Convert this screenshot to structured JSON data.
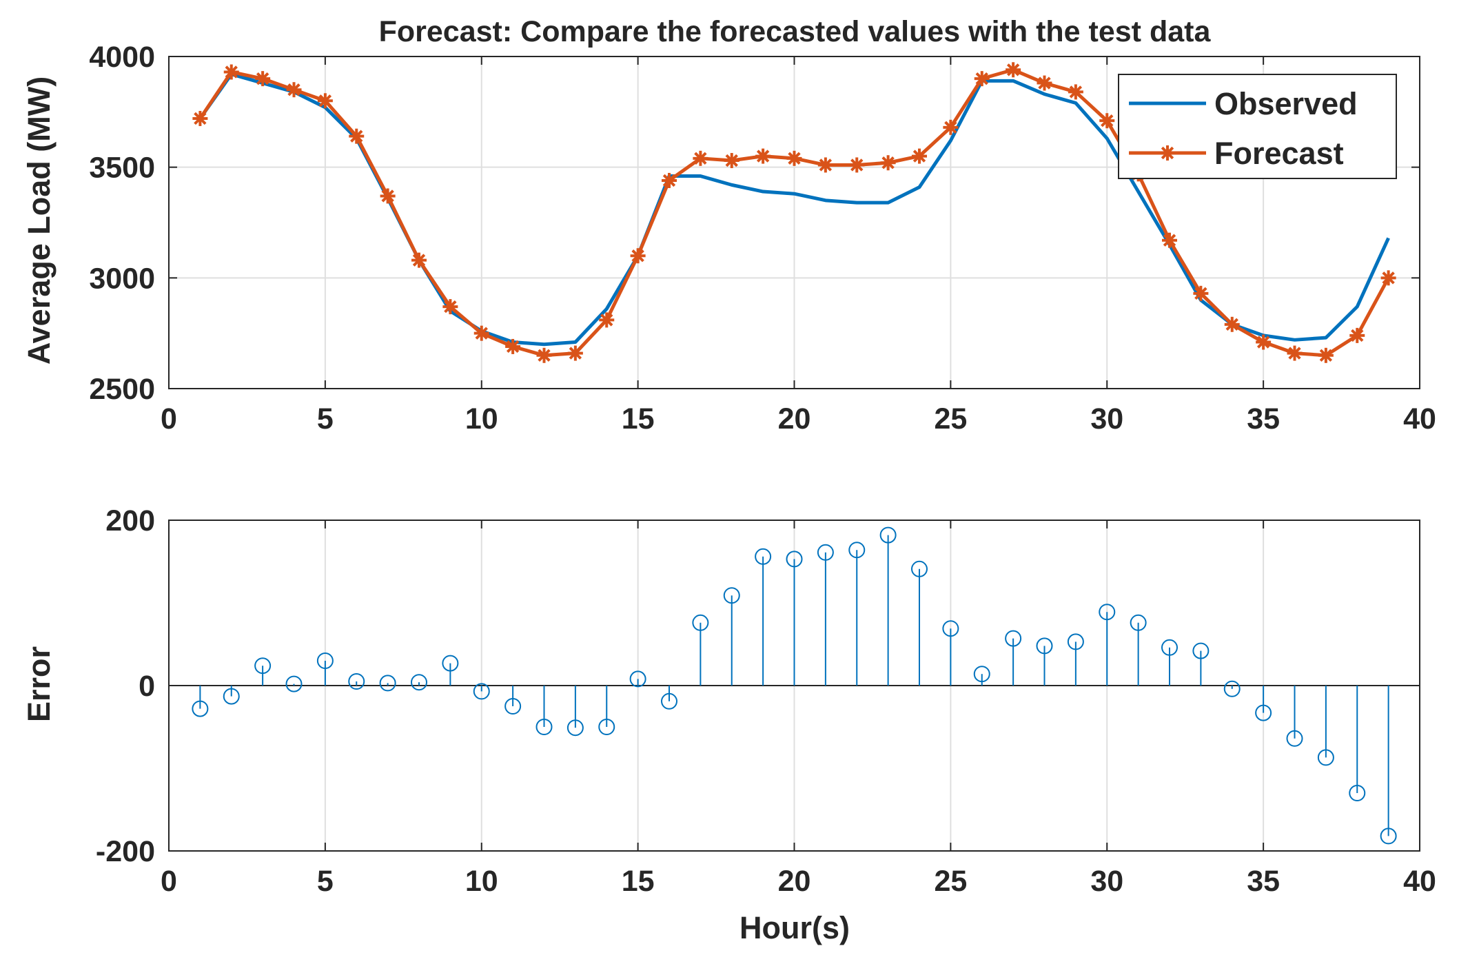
{
  "chart_data": [
    {
      "type": "line",
      "title": "Forecast: Compare the forecasted values with the test data",
      "xlabel": "",
      "ylabel": "Average Load (MW)",
      "xlim": [
        0,
        40
      ],
      "ylim": [
        2500,
        4000
      ],
      "xticks": [
        "0",
        "5",
        "10",
        "15",
        "20",
        "25",
        "30",
        "35",
        "40"
      ],
      "yticks": [
        "2500",
        "3000",
        "3500",
        "4000"
      ],
      "grid": true,
      "legend_position": "top-right",
      "x": [
        1,
        2,
        3,
        4,
        5,
        6,
        7,
        8,
        9,
        10,
        11,
        12,
        13,
        14,
        15,
        16,
        17,
        18,
        19,
        20,
        21,
        22,
        23,
        24,
        25,
        26,
        27,
        28,
        29,
        30,
        31,
        32,
        33,
        34,
        35,
        36,
        37,
        38,
        39
      ],
      "series": [
        {
          "name": "Observed",
          "color": "#0072BD",
          "marker": "none",
          "values": [
            3720,
            3920,
            3880,
            3840,
            3770,
            3630,
            3360,
            3080,
            2850,
            2760,
            2710,
            2700,
            2710,
            2860,
            3100,
            3460,
            3460,
            3420,
            3390,
            3380,
            3350,
            3340,
            3340,
            3410,
            3620,
            3890,
            3890,
            3830,
            3790,
            3630,
            3390,
            3150,
            2900,
            2790,
            2740,
            2720,
            2730,
            2870,
            3180
          ]
        },
        {
          "name": "Forecast",
          "color": "#D95319",
          "marker": "asterisk",
          "values": [
            3720,
            3930,
            3900,
            3850,
            3800,
            3640,
            3370,
            3080,
            2870,
            2750,
            2690,
            2650,
            2660,
            2810,
            3100,
            3440,
            3540,
            3530,
            3550,
            3540,
            3510,
            3510,
            3520,
            3550,
            3680,
            3900,
            3940,
            3880,
            3840,
            3710,
            3470,
            3170,
            2930,
            2790,
            2710,
            2660,
            2650,
            2740,
            3000
          ]
        }
      ]
    },
    {
      "type": "stem",
      "title": "",
      "xlabel": "Hour(s)",
      "ylabel": "Error",
      "xlim": [
        0,
        40
      ],
      "ylim": [
        -200,
        200
      ],
      "xticks": [
        "0",
        "5",
        "10",
        "15",
        "20",
        "25",
        "30",
        "35",
        "40"
      ],
      "yticks": [
        "-200",
        "0",
        "200"
      ],
      "grid": true,
      "x": [
        1,
        2,
        3,
        4,
        5,
        6,
        7,
        8,
        9,
        10,
        11,
        12,
        13,
        14,
        15,
        16,
        17,
        18,
        19,
        20,
        21,
        22,
        23,
        24,
        25,
        26,
        27,
        28,
        29,
        30,
        31,
        32,
        33,
        34,
        35,
        36,
        37,
        38,
        39
      ],
      "series": [
        {
          "name": "",
          "color": "#0072BD",
          "marker": "circle",
          "values": [
            -28,
            -13,
            24,
            2,
            30,
            5,
            3,
            4,
            27,
            -7,
            -25,
            -50,
            -51,
            -50,
            8,
            -19,
            76,
            109,
            156,
            153,
            161,
            164,
            182,
            141,
            69,
            14,
            57,
            48,
            53,
            89,
            76,
            46,
            42,
            -4,
            -33,
            -64,
            -87,
            -130,
            -182
          ]
        }
      ]
    }
  ]
}
